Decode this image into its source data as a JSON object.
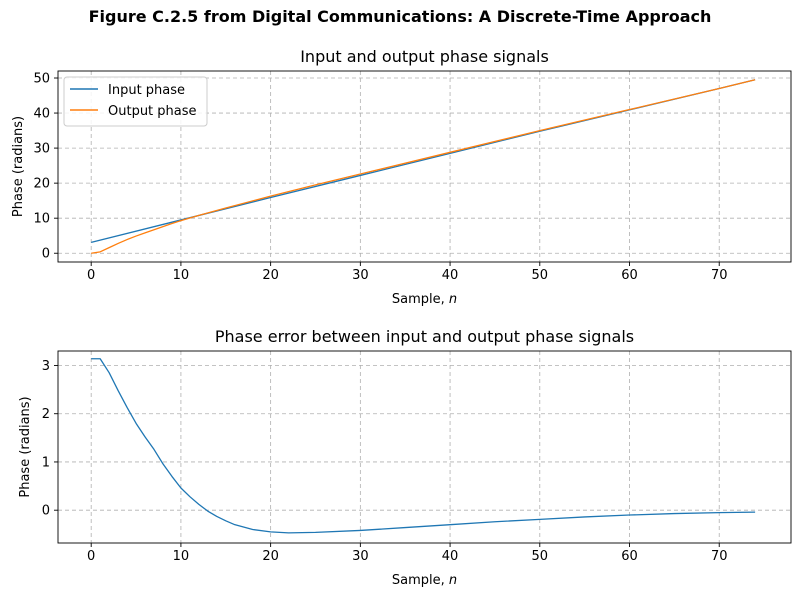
{
  "figure": {
    "suptitle": "Figure C.2.5 from Digital Communications: A Discrete-Time Approach"
  },
  "colors": {
    "series1": "#1f77b4",
    "series2": "#ff7f0e",
    "grid": "#b0b0b0"
  },
  "chart_data": [
    {
      "type": "line",
      "title": "Input and output phase signals",
      "xlabel": "Sample, ",
      "xlabel_var": "n",
      "ylabel": "Phase (radians)",
      "xlim": [
        -3.7,
        78.0
      ],
      "ylim": [
        -2.5,
        52.0
      ],
      "xticks": [
        0,
        10,
        20,
        30,
        40,
        50,
        60,
        70
      ],
      "yticks": [
        0,
        10,
        20,
        30,
        40,
        50
      ],
      "grid": true,
      "legend": "top-left",
      "series": [
        {
          "name": "Input phase",
          "color": "#1f77b4",
          "points": [
            [
              0,
              3.1
            ],
            [
              10,
              9.5
            ],
            [
              20,
              15.9
            ],
            [
              30,
              22.2
            ],
            [
              40,
              28.5
            ],
            [
              50,
              34.8
            ],
            [
              60,
              40.9
            ],
            [
              70,
              47.0
            ],
            [
              74,
              49.5
            ]
          ]
        },
        {
          "name": "Output phase",
          "color": "#ff7f0e",
          "points": [
            [
              0,
              0.0
            ],
            [
              1,
              0.4
            ],
            [
              2,
              1.6
            ],
            [
              3,
              2.8
            ],
            [
              4,
              3.9
            ],
            [
              5,
              4.9
            ],
            [
              6,
              5.8
            ],
            [
              7,
              6.7
            ],
            [
              8,
              7.6
            ],
            [
              9,
              8.5
            ],
            [
              10,
              9.3
            ],
            [
              12,
              10.8
            ],
            [
              15,
              12.9
            ],
            [
              20,
              16.3
            ],
            [
              25,
              19.5
            ],
            [
              30,
              22.6
            ],
            [
              40,
              28.8
            ],
            [
              50,
              35.0
            ],
            [
              60,
              41.0
            ],
            [
              70,
              47.0
            ],
            [
              74,
              49.5
            ]
          ]
        }
      ]
    },
    {
      "type": "line",
      "title": "Phase error between input and output phase signals",
      "xlabel": "Sample, ",
      "xlabel_var": "n",
      "ylabel": "Phase (radians)",
      "xlim": [
        -3.7,
        78.0
      ],
      "ylim": [
        -0.68,
        3.3
      ],
      "xticks": [
        0,
        10,
        20,
        30,
        40,
        50,
        60,
        70
      ],
      "yticks": [
        0,
        1,
        2,
        3
      ],
      "grid": true,
      "series": [
        {
          "color": "#1f77b4",
          "points": [
            [
              0,
              3.14
            ],
            [
              1,
              3.14
            ],
            [
              2,
              2.85
            ],
            [
              3,
              2.48
            ],
            [
              4,
              2.13
            ],
            [
              5,
              1.8
            ],
            [
              6,
              1.52
            ],
            [
              7,
              1.26
            ],
            [
              8,
              0.96
            ],
            [
              9,
              0.7
            ],
            [
              10,
              0.46
            ],
            [
              11,
              0.28
            ],
            [
              12,
              0.12
            ],
            [
              13,
              -0.02
            ],
            [
              14,
              -0.13
            ],
            [
              15,
              -0.22
            ],
            [
              16,
              -0.3
            ],
            [
              18,
              -0.4
            ],
            [
              20,
              -0.45
            ],
            [
              22,
              -0.47
            ],
            [
              25,
              -0.46
            ],
            [
              30,
              -0.42
            ],
            [
              35,
              -0.36
            ],
            [
              40,
              -0.3
            ],
            [
              45,
              -0.24
            ],
            [
              50,
              -0.19
            ],
            [
              55,
              -0.14
            ],
            [
              60,
              -0.1
            ],
            [
              65,
              -0.07
            ],
            [
              70,
              -0.05
            ],
            [
              74,
              -0.04
            ]
          ]
        }
      ]
    }
  ]
}
